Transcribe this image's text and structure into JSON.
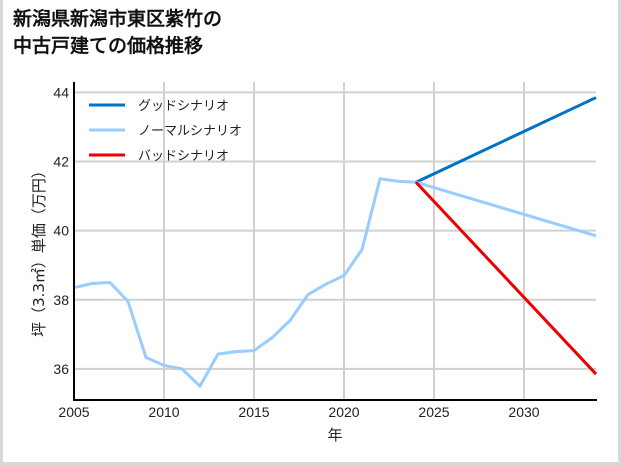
{
  "title": {
    "line1": "新潟県新潟市東区紫竹の",
    "line2": "中古戸建ての価格推移"
  },
  "colors": {
    "good": "#0072c6",
    "normal": "#99ccff",
    "bad": "#ee0000",
    "grid": "#d0d0d0",
    "axis": "#000000",
    "frame": "#d9d9d9"
  },
  "chart_data": {
    "type": "line",
    "title": "新潟県新潟市東区紫竹の中古戸建ての価格推移",
    "xlabel": "年",
    "ylabel": "坪（3.3㎡）単価（万円）",
    "xlim": [
      2005,
      2034
    ],
    "ylim": [
      35.1,
      44.3
    ],
    "xticks": [
      2005,
      2010,
      2015,
      2020,
      2025,
      2030
    ],
    "yticks": [
      36,
      38,
      40,
      42,
      44
    ],
    "grid": true,
    "legend_position": "upper left",
    "historical": {
      "x": [
        2005,
        2006,
        2007,
        2008,
        2009,
        2010,
        2011,
        2012,
        2013,
        2014,
        2015,
        2016,
        2017,
        2018,
        2019,
        2020,
        2021,
        2022,
        2023,
        2024
      ],
      "values": [
        38.35,
        38.47,
        38.5,
        37.95,
        36.33,
        36.1,
        36.0,
        35.5,
        36.43,
        36.5,
        36.53,
        36.9,
        37.4,
        38.15,
        38.45,
        38.7,
        39.45,
        41.5,
        41.43,
        41.4
      ]
    },
    "series": [
      {
        "name": "グッドシナリオ",
        "x": [
          2024,
          2034
        ],
        "values": [
          41.4,
          43.85
        ],
        "color": "#0072c6"
      },
      {
        "name": "ノーマルシナリオ",
        "x": [
          2024,
          2034
        ],
        "values": [
          41.4,
          39.85
        ],
        "color": "#99ccff"
      },
      {
        "name": "バッドシナリオ",
        "x": [
          2024,
          2034
        ],
        "values": [
          41.4,
          35.85
        ],
        "color": "#ee0000"
      }
    ]
  },
  "legend": {
    "items": [
      {
        "label": "グッドシナリオ",
        "color": "#0072c6"
      },
      {
        "label": "ノーマルシナリオ",
        "color": "#99ccff"
      },
      {
        "label": "バッドシナリオ",
        "color": "#ee0000"
      }
    ]
  },
  "axes": {
    "xlabel": "年",
    "ylabel": "坪（3.3㎡）単価（万円）",
    "xtick_labels": [
      "2005",
      "2010",
      "2015",
      "2020",
      "2025",
      "2030"
    ],
    "ytick_labels": [
      "36",
      "38",
      "40",
      "42",
      "44"
    ]
  }
}
